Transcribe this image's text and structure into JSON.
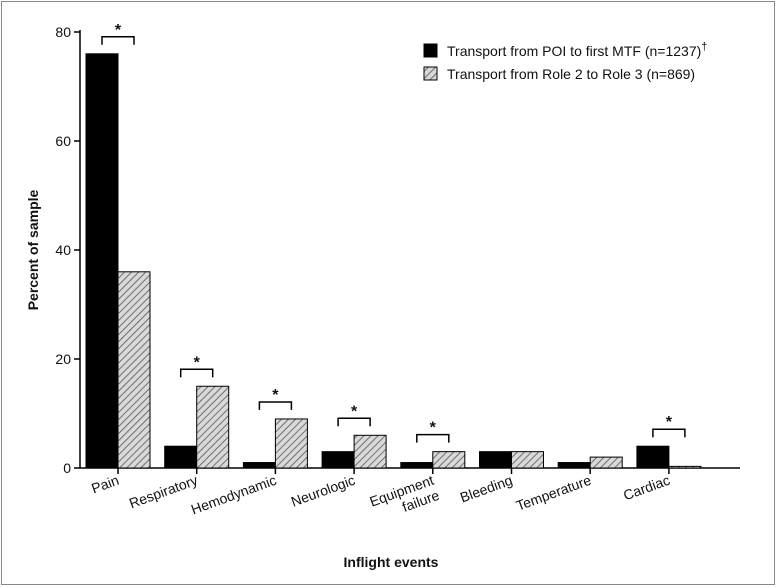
{
  "chart_data": {
    "type": "bar",
    "xlabel": "Inflight events",
    "ylabel": "Percent of sample",
    "ylim": [
      0,
      80
    ],
    "yticks": [
      0,
      20,
      40,
      60,
      80
    ],
    "categories": [
      [
        "Pain"
      ],
      [
        "Respiratory"
      ],
      [
        "Hemodynamic"
      ],
      [
        "Neurologic"
      ],
      [
        "Equipment",
        "failure"
      ],
      [
        "Bleeding"
      ],
      [
        "Temperature"
      ],
      [
        "Cardiac"
      ]
    ],
    "series": [
      {
        "name": "Transport from POI to first MTF (n=1237)",
        "name_sup": "†",
        "fill": "#000000",
        "pattern": "solid",
        "values": [
          76,
          4,
          1,
          3,
          1,
          3,
          1,
          4
        ]
      },
      {
        "name": "Transport from Role 2 to Role 3 (n=869)",
        "name_sup": "",
        "fill": "#d0d0d0",
        "pattern": "hatched",
        "values": [
          36,
          15,
          9,
          6,
          3,
          3,
          2,
          0.3
        ]
      }
    ],
    "significance": {
      "marker": "*",
      "categories": [
        0,
        1,
        2,
        3,
        4,
        7
      ]
    },
    "legend_position": "top-right",
    "grid": false
  }
}
